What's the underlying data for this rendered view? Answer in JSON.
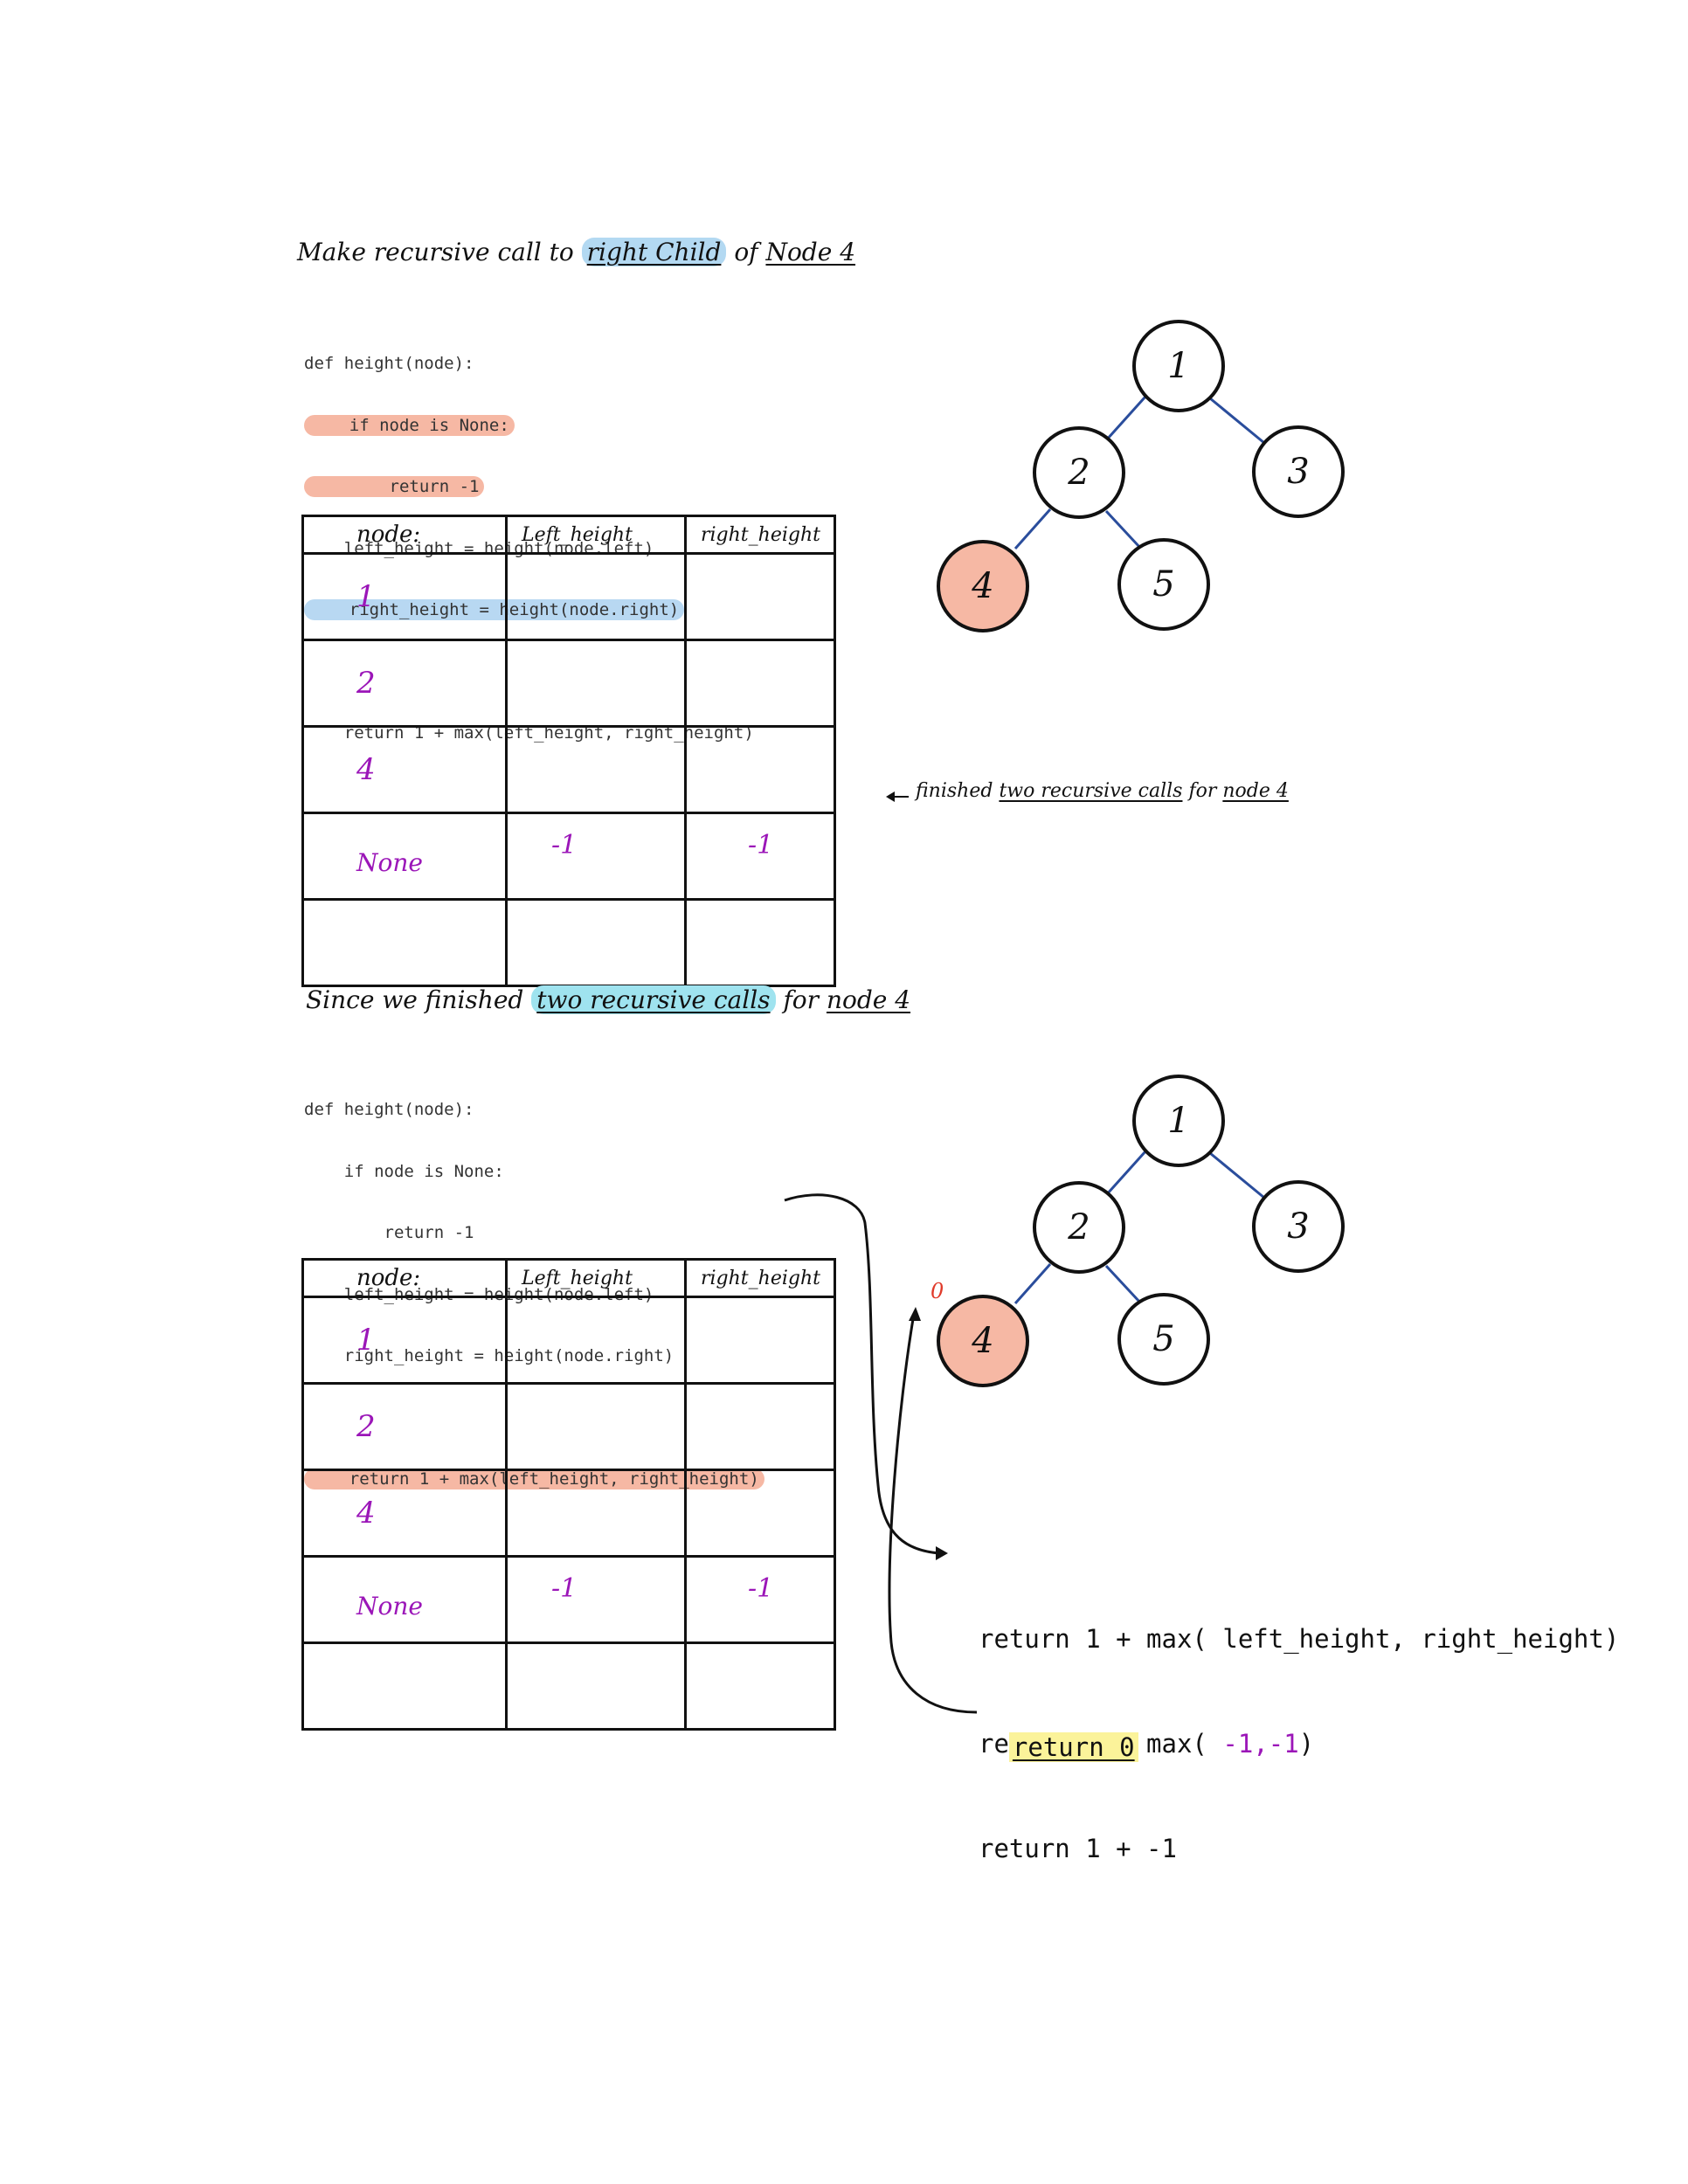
{
  "section1": {
    "title_parts": [
      "Make recursive call to ",
      "right Child",
      " of ",
      "Node 4"
    ],
    "code": [
      "def height(node):",
      "    if node is None:",
      "        return -1",
      "    left_height = height(node.left)",
      "    right_height = height(node.right)",
      "",
      "    return 1 + max(left_height, right_height)"
    ],
    "table": {
      "headers": [
        "node:",
        "Left_height",
        "right_height"
      ],
      "rows": [
        {
          "node": "1",
          "left": "",
          "right": ""
        },
        {
          "node": "2",
          "left": "",
          "right": ""
        },
        {
          "node": "4",
          "left": "",
          "right": ""
        },
        {
          "node": "None",
          "left": "-1",
          "right": "-1"
        },
        {
          "node": "",
          "left": "",
          "right": ""
        }
      ]
    },
    "note_parts": [
      "finished ",
      "two recursive calls",
      " for ",
      "node 4"
    ]
  },
  "section2": {
    "title_parts": [
      "Since we finished ",
      "two recursive calls",
      " for ",
      "node 4"
    ],
    "code": [
      "def height(node):",
      "    if node is None:",
      "        return -1",
      "    left_height = height(node.left)",
      "    right_height = height(node.right)",
      "",
      "    return 1 + max(left_height, right_height)"
    ],
    "table": {
      "headers": [
        "node:",
        "Left_height",
        "right_height"
      ],
      "rows": [
        {
          "node": "1",
          "left": "",
          "right": ""
        },
        {
          "node": "2",
          "left": "",
          "right": ""
        },
        {
          "node": "4",
          "left": "",
          "right": ""
        },
        {
          "node": "None",
          "left": "-1",
          "right": "-1"
        },
        {
          "node": "",
          "left": "",
          "right": ""
        }
      ]
    },
    "return_value_label": "0",
    "calc": {
      "line1_prefix": "return 1 + max( ",
      "line1_args": "left_height, right_height",
      "line1_suffix": ")",
      "line2_prefix": "return 1 + max( ",
      "line2_args": "-1,-1",
      "line2_suffix": ")",
      "line3": "return 1 + -1",
      "result": "return 0"
    }
  },
  "tree": {
    "nodes": [
      "1",
      "2",
      "3",
      "4",
      "5"
    ],
    "highlighted_node": "4",
    "highlight_color": "#f6b8a4",
    "edge_color": "#2a4d9c"
  }
}
